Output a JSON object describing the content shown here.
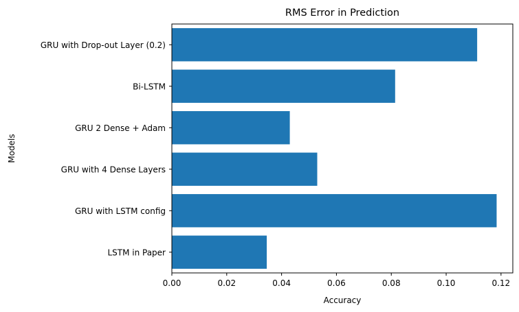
{
  "chart_data": {
    "type": "bar",
    "orientation": "horizontal",
    "title": "RMS Error in Prediction",
    "xlabel": "Accuracy",
    "ylabel": "Models",
    "categories": [
      "LSTM in Paper",
      "GRU with LSTM config",
      "GRU with 4 Dense Layers",
      "GRU 2 Dense + Adam",
      "Bi-LSTM",
      "GRU with Drop-out Layer (0.2)"
    ],
    "values": [
      0.0346,
      0.1184,
      0.053,
      0.043,
      0.0814,
      0.1113
    ],
    "xlim": [
      0,
      0.1243
    ],
    "xticks": [
      0.0,
      0.02,
      0.04,
      0.06,
      0.08,
      0.1,
      0.12
    ],
    "xtick_labels": [
      "0.00",
      "0.02",
      "0.04",
      "0.06",
      "0.08",
      "0.10",
      "0.12"
    ],
    "grid": false,
    "bar_color": "#1f77b4"
  }
}
